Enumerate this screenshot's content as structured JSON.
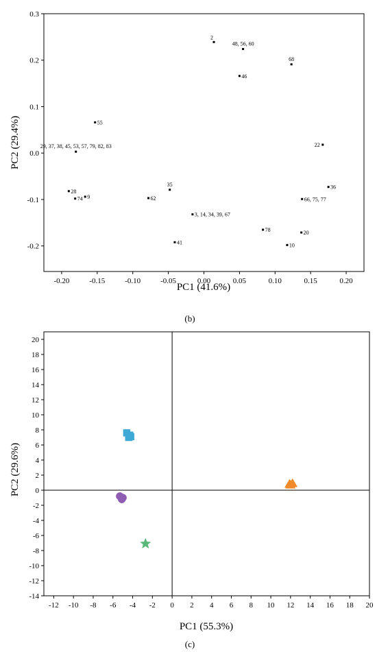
{
  "chart_data": [
    {
      "type": "scatter",
      "panel_label": "(b)",
      "xlabel": "PC1 (41.6%)",
      "ylabel": "PC2 (29.4%)",
      "xlim": [
        -0.225,
        0.225
      ],
      "ylim": [
        -0.255,
        0.3
      ],
      "xticks": [
        -0.2,
        -0.15,
        -0.1,
        -0.05,
        0.0,
        0.05,
        0.1,
        0.15,
        0.2
      ],
      "xtick_labels": [
        "-0.20",
        "-0.15",
        "-0.10",
        "-0.05",
        "0.00",
        "0.05",
        "0.10",
        "0.15",
        "0.20"
      ],
      "yticks": [
        -0.2,
        -0.1,
        0.0,
        0.1,
        0.2,
        0.3
      ],
      "ytick_labels": [
        "-0.2",
        "-0.1",
        "0.0",
        "0.1",
        "0.2",
        "0.3"
      ],
      "grid": false,
      "marker_color": "#000000",
      "points": [
        {
          "x": 0.014,
          "y": 0.239,
          "label": "2",
          "label_pos": "above-left"
        },
        {
          "x": 0.055,
          "y": 0.224,
          "label": "48, 56, 60",
          "label_pos": "above"
        },
        {
          "x": 0.123,
          "y": 0.191,
          "label": "68",
          "label_pos": "above"
        },
        {
          "x": 0.05,
          "y": 0.166,
          "label": "46",
          "label_pos": "right"
        },
        {
          "x": -0.153,
          "y": 0.066,
          "label": "55",
          "label_pos": "right"
        },
        {
          "x": -0.18,
          "y": 0.003,
          "label": "29, 37, 38, 45, 53, 57, 79, 82, 83",
          "label_pos": "above"
        },
        {
          "x": 0.167,
          "y": 0.018,
          "label": "22",
          "label_pos": "left"
        },
        {
          "x": -0.048,
          "y": -0.079,
          "label": "35",
          "label_pos": "above"
        },
        {
          "x": -0.19,
          "y": -0.082,
          "label": "28",
          "label_pos": "right"
        },
        {
          "x": -0.181,
          "y": -0.098,
          "label": "74",
          "label_pos": "right"
        },
        {
          "x": -0.167,
          "y": -0.094,
          "label": "9",
          "label_pos": "right"
        },
        {
          "x": -0.078,
          "y": -0.097,
          "label": "62",
          "label_pos": "right"
        },
        {
          "x": 0.175,
          "y": -0.073,
          "label": "36",
          "label_pos": "right"
        },
        {
          "x": 0.138,
          "y": -0.099,
          "label": "66, 75, 77",
          "label_pos": "right"
        },
        {
          "x": -0.016,
          "y": -0.132,
          "label": "3, 14, 34, 39, 67",
          "label_pos": "right"
        },
        {
          "x": 0.083,
          "y": -0.165,
          "label": "78",
          "label_pos": "right"
        },
        {
          "x": 0.137,
          "y": -0.171,
          "label": "20",
          "label_pos": "right"
        },
        {
          "x": 0.117,
          "y": -0.198,
          "label": "10",
          "label_pos": "right"
        },
        {
          "x": -0.041,
          "y": -0.192,
          "label": "41",
          "label_pos": "right"
        }
      ]
    },
    {
      "type": "scatter",
      "panel_label": "(c)",
      "xlabel": "PC1 (55.3%)",
      "ylabel": "PC2 (29.6%)",
      "xlim": [
        -13,
        20
      ],
      "ylim": [
        -14,
        21
      ],
      "xticks": [
        -12,
        -10,
        -8,
        -6,
        -4,
        -2,
        0,
        2,
        4,
        6,
        8,
        10,
        12,
        14,
        16,
        18,
        20
      ],
      "yticks": [
        -14,
        -12,
        -10,
        -8,
        -6,
        -4,
        -2,
        0,
        2,
        4,
        6,
        8,
        10,
        12,
        14,
        16,
        18,
        20
      ],
      "zero_lines": true,
      "grid": false,
      "groups": [
        {
          "marker": "square",
          "color": "#3fa9d6",
          "points": [
            [
              -4.6,
              7.6
            ],
            [
              -4.3,
              7.3
            ],
            [
              -4.4,
              7.0
            ],
            [
              -4.2,
              7.1
            ]
          ]
        },
        {
          "marker": "triangle",
          "color": "#f08a2a",
          "points": [
            [
              11.9,
              0.8
            ],
            [
              12.2,
              0.9
            ],
            [
              12.0,
              0.7
            ]
          ]
        },
        {
          "marker": "circle",
          "color": "#8e5db3",
          "points": [
            [
              -5.3,
              -0.8
            ],
            [
              -5.0,
              -1.0
            ],
            [
              -5.1,
              -1.2
            ]
          ]
        },
        {
          "marker": "star",
          "color": "#5cb87a",
          "points": [
            [
              -2.7,
              -7.1
            ]
          ]
        }
      ]
    }
  ]
}
